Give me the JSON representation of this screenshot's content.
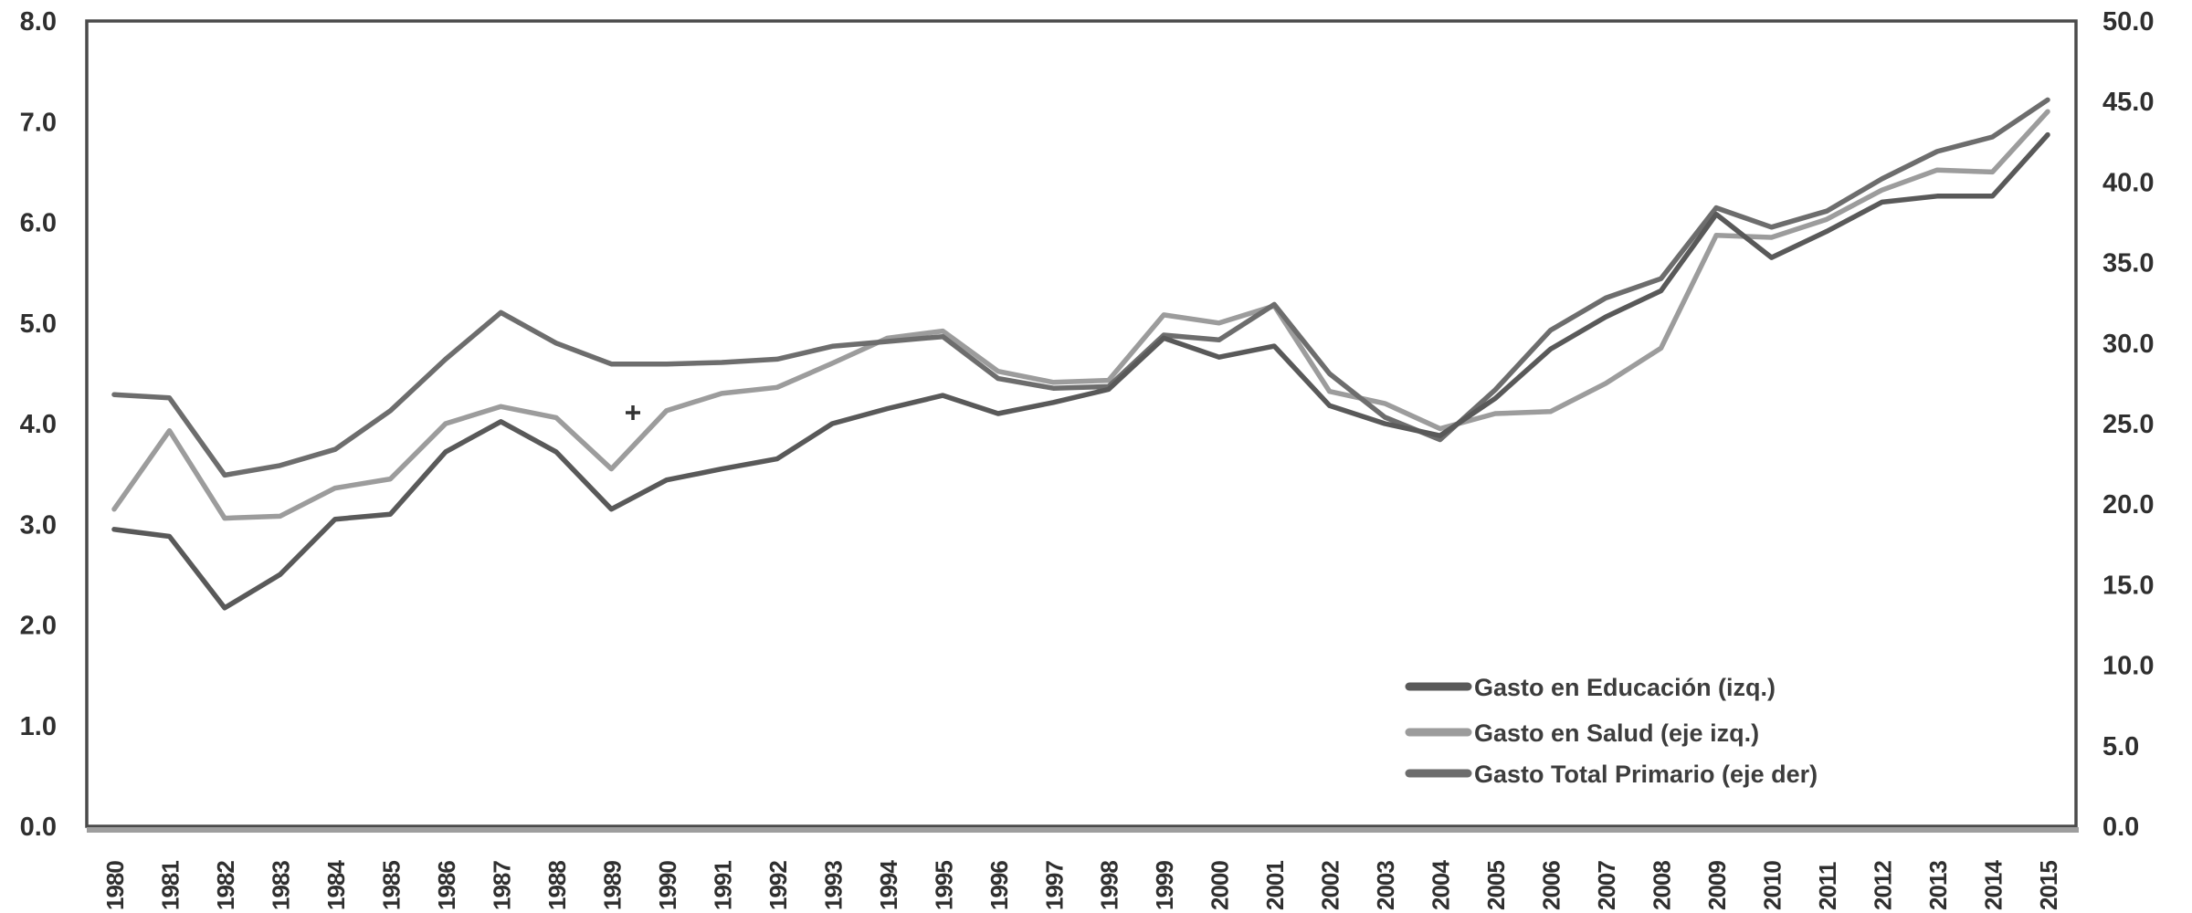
{
  "chart_data": {
    "type": "line",
    "title": "",
    "xlabel": "",
    "ylabel_left": "",
    "ylabel_right": "",
    "grid": false,
    "legend_position": "inside-bottom-right",
    "x_tick_labels": [
      "1980",
      "1981",
      "1982",
      "1983",
      "1984",
      "1985",
      "1986",
      "1987",
      "1988",
      "1989",
      "1990",
      "1991",
      "1992",
      "1993",
      "1994",
      "1995",
      "1996",
      "1997",
      "1998",
      "1999",
      "2000",
      "2001",
      "2002",
      "2003",
      "2004",
      "2005",
      "2006",
      "2007",
      "2008",
      "2009",
      "2010",
      "2011",
      "2012",
      "2013",
      "2014",
      "2015"
    ],
    "left_axis": {
      "min": 0,
      "max": 8,
      "step": 1,
      "tick_labels": [
        "0.0",
        "1.0",
        "2.0",
        "3.0",
        "4.0",
        "5.0",
        "6.0",
        "7.0",
        "8.0"
      ]
    },
    "right_axis": {
      "min": 0,
      "max": 50,
      "step": 5,
      "tick_labels": [
        "0.0",
        "5.0",
        "10.0",
        "15.0",
        "20.0",
        "25.0",
        "30.0",
        "35.0",
        "40.0",
        "45.0",
        "50.0"
      ]
    },
    "series": [
      {
        "name": "Gasto en Educación (izq.)",
        "axis": "left",
        "color": "#595959",
        "values": [
          2.95,
          2.88,
          2.17,
          2.5,
          3.05,
          3.1,
          3.72,
          4.02,
          3.72,
          3.15,
          3.44,
          3.55,
          3.65,
          4.0,
          4.15,
          4.28,
          4.1,
          4.21,
          4.34,
          4.85,
          4.66,
          4.77,
          4.18,
          4.0,
          3.88,
          4.25,
          4.74,
          5.06,
          5.32,
          6.08,
          5.65,
          5.91,
          6.2,
          6.26,
          6.26,
          6.87
        ]
      },
      {
        "name": "Gasto en Salud (eje izq.)",
        "axis": "left",
        "color": "#9c9c9c",
        "values": [
          3.15,
          3.93,
          3.06,
          3.08,
          3.36,
          3.45,
          4.0,
          4.17,
          4.06,
          3.55,
          4.13,
          4.3,
          4.36,
          4.6,
          4.85,
          4.92,
          4.52,
          4.41,
          4.43,
          5.08,
          5.0,
          5.17,
          4.32,
          4.2,
          3.95,
          4.1,
          4.12,
          4.4,
          4.75,
          5.87,
          5.85,
          6.03,
          6.32,
          6.52,
          6.5,
          7.1
        ]
      },
      {
        "name": "Gasto Total Primario (eje der)",
        "axis": "right",
        "color": "#6d6d6d",
        "values": [
          26.8,
          26.6,
          21.8,
          22.4,
          23.4,
          25.8,
          29.0,
          31.9,
          30.0,
          28.7,
          28.7,
          28.8,
          29.0,
          29.8,
          30.1,
          30.4,
          27.8,
          27.2,
          27.3,
          30.5,
          30.2,
          32.4,
          28.1,
          25.4,
          24.0,
          27.1,
          30.8,
          32.8,
          34.0,
          38.4,
          37.2,
          38.2,
          40.2,
          41.9,
          42.8,
          45.1
        ]
      }
    ],
    "annotations": [
      {
        "type": "plus-mark",
        "near_x": "1990",
        "note": "small stray plus mark on the Salud line near 1990"
      }
    ]
  },
  "colors": {
    "background": "#ffffff",
    "frame": "#4a4a4a",
    "bottom_border": "#9e9e9e",
    "text": "#2f2f2f",
    "artifact": "#333333"
  }
}
